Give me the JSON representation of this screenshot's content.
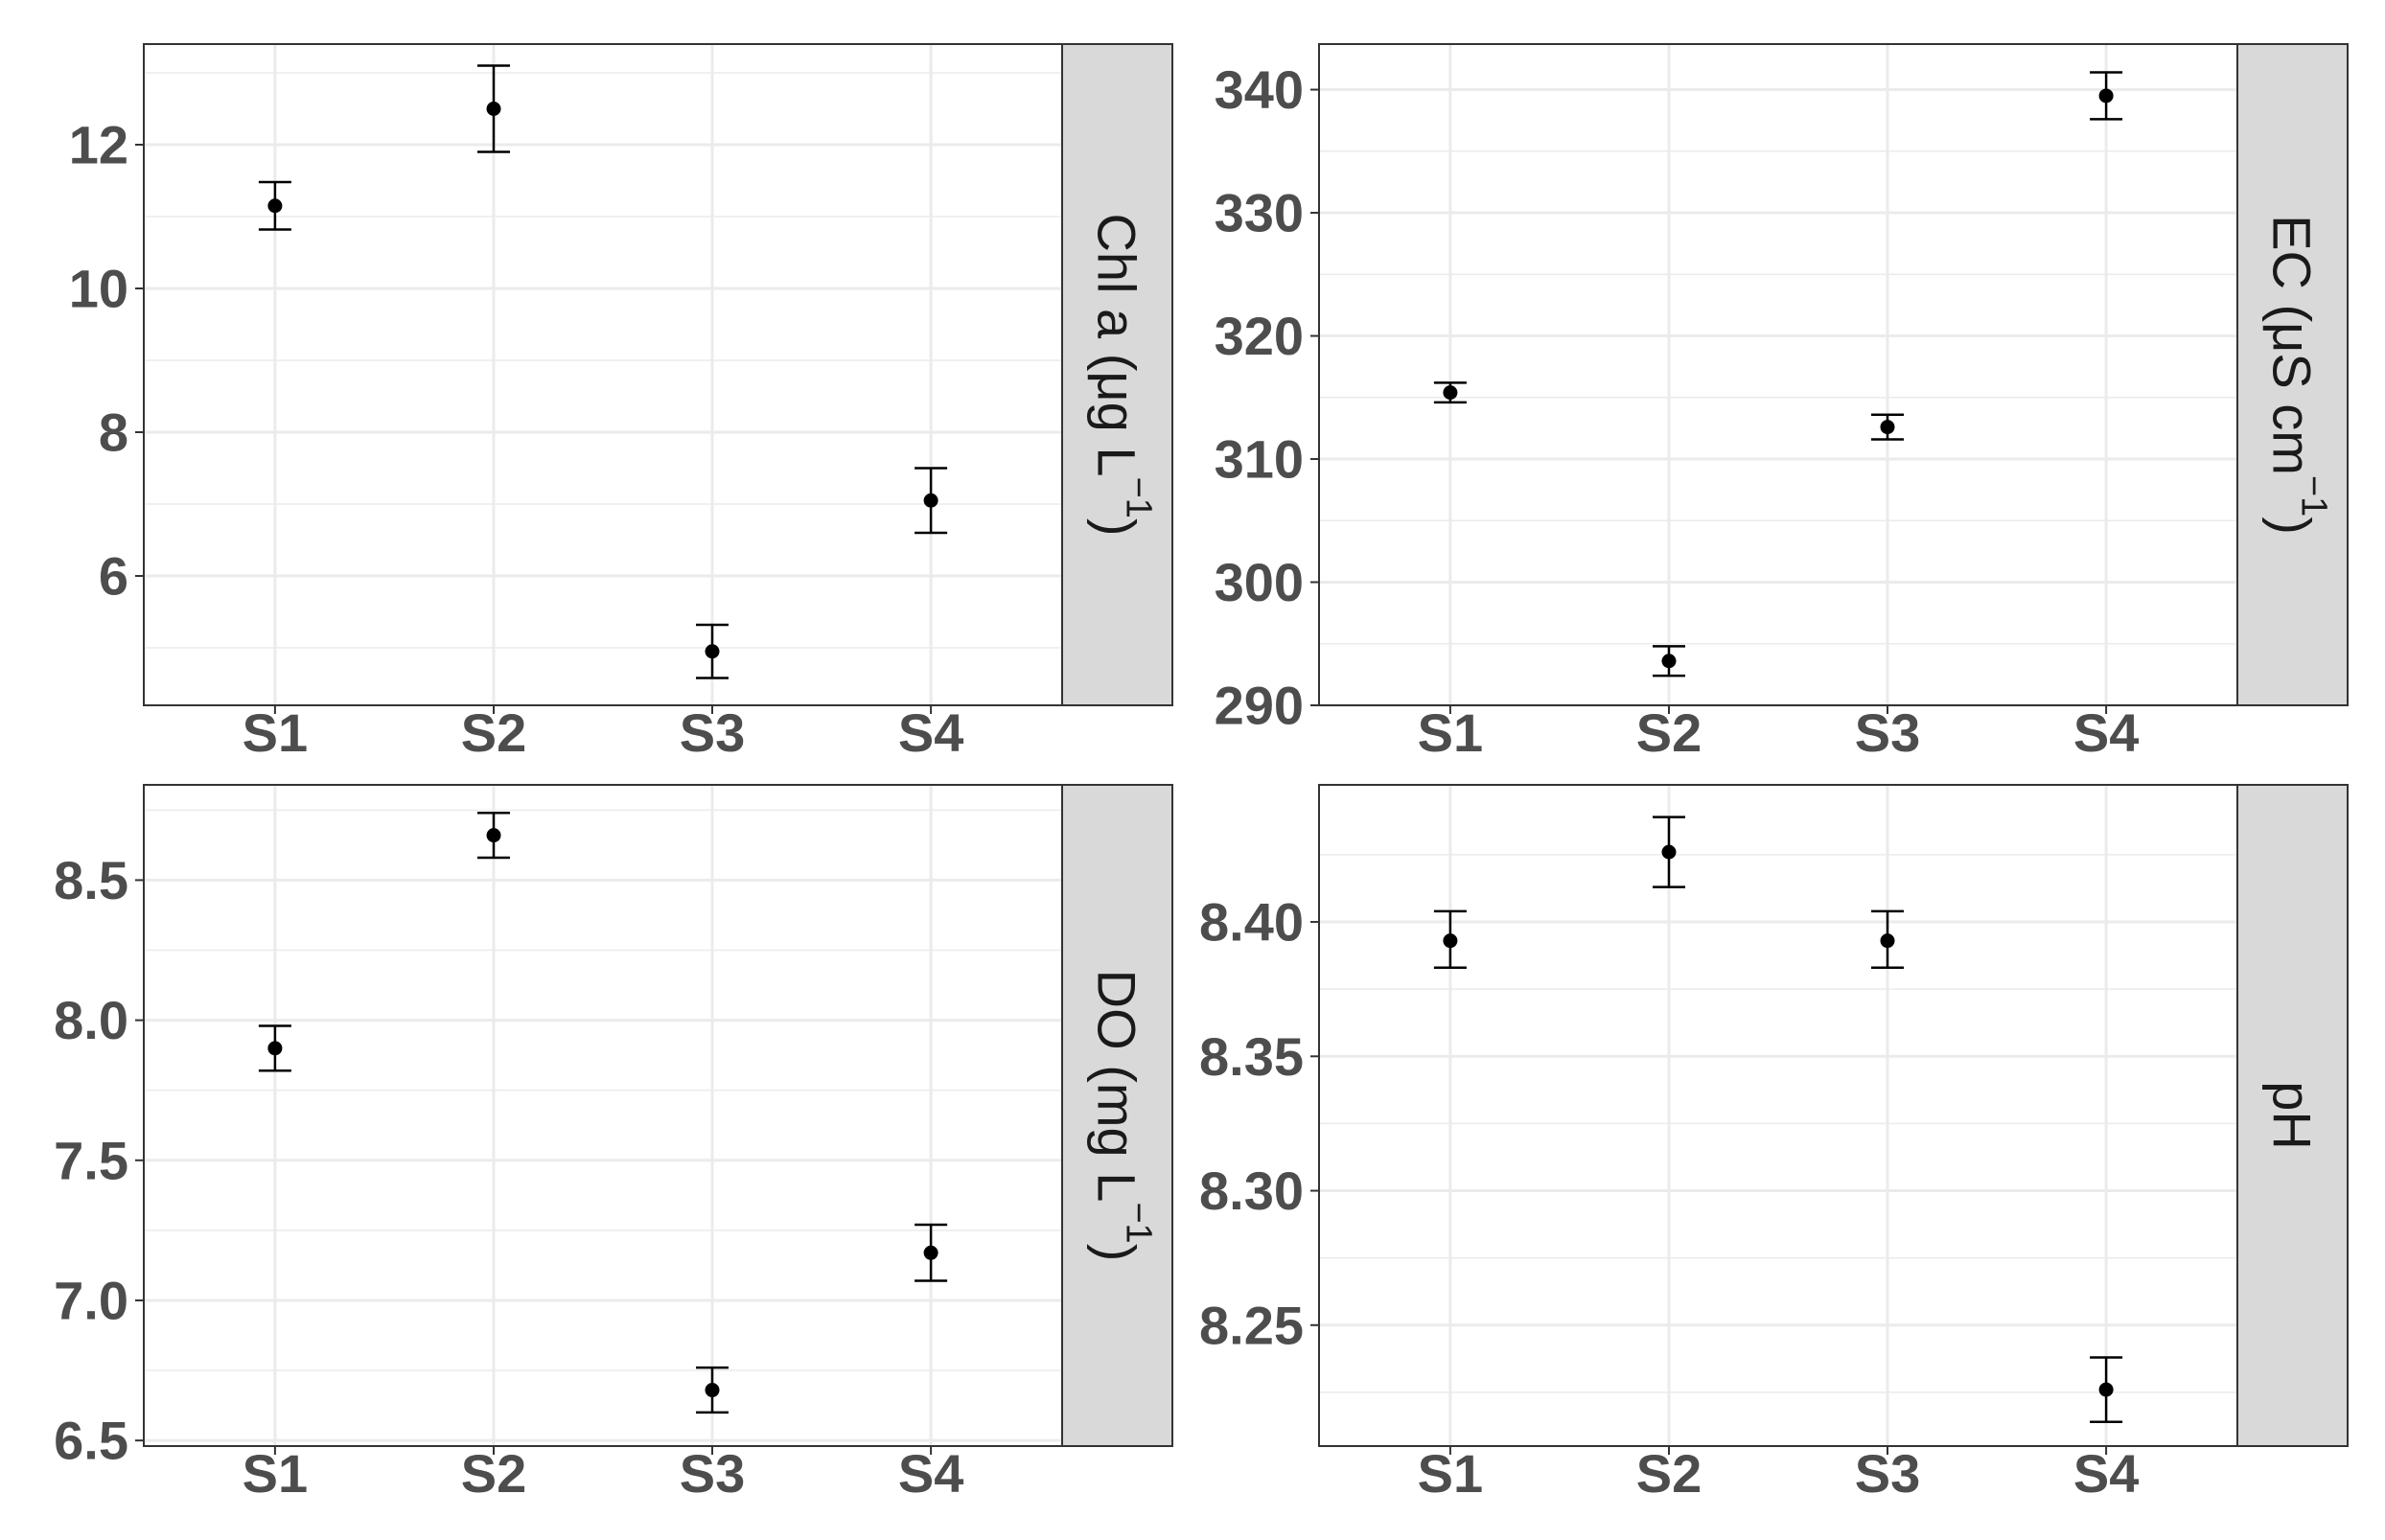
{
  "chart_data": [
    {
      "type": "scatter",
      "strip_label": {
        "main": "Chl a (μg L",
        "sup": "−1",
        "tail": ")"
      },
      "categories": [
        "S1",
        "S2",
        "S3",
        "S4"
      ],
      "values": [
        11.15,
        12.5,
        4.95,
        7.05
      ],
      "error_low": [
        10.82,
        11.9,
        4.58,
        6.6
      ],
      "error_high": [
        11.48,
        13.1,
        5.32,
        7.5
      ],
      "ylim": [
        4.2,
        13.4
      ],
      "yticks": [
        6,
        8,
        10,
        12
      ],
      "ytick_labels": [
        "6",
        "8",
        "10",
        "12"
      ],
      "grid": true
    },
    {
      "type": "scatter",
      "strip_label": {
        "main": "EC (μS cm",
        "sup": "−1",
        "tail": ")"
      },
      "categories": [
        "S1",
        "S2",
        "S3",
        "S4"
      ],
      "values": [
        315.4,
        293.6,
        312.6,
        339.5
      ],
      "error_low": [
        314.6,
        292.4,
        311.6,
        337.6
      ],
      "error_high": [
        316.2,
        294.8,
        313.6,
        341.4
      ],
      "ylim": [
        290,
        343.7
      ],
      "yticks": [
        290,
        300,
        310,
        320,
        330,
        340
      ],
      "ytick_labels": [
        "290",
        "300",
        "310",
        "320",
        "330",
        "340"
      ],
      "grid": true
    },
    {
      "type": "scatter",
      "strip_label": {
        "main": "DO (mg L",
        "sup": "−1",
        "tail": ")"
      },
      "categories": [
        "S1",
        "S2",
        "S3",
        "S4"
      ],
      "values": [
        7.9,
        8.66,
        6.68,
        7.17
      ],
      "error_low": [
        7.82,
        8.58,
        6.6,
        7.07
      ],
      "error_high": [
        7.98,
        8.74,
        6.76,
        7.27
      ],
      "ylim": [
        6.48,
        8.84
      ],
      "yticks": [
        6.5,
        7.0,
        7.5,
        8.0,
        8.5
      ],
      "ytick_labels": [
        "6.5",
        "7.0",
        "7.5",
        "8.0",
        "8.5"
      ],
      "grid": true
    },
    {
      "type": "scatter",
      "strip_label": {
        "main": "pH",
        "sup": "",
        "tail": ""
      },
      "categories": [
        "S1",
        "S2",
        "S3",
        "S4"
      ],
      "values": [
        8.393,
        8.426,
        8.393,
        8.226
      ],
      "error_low": [
        8.383,
        8.413,
        8.383,
        8.214
      ],
      "error_high": [
        8.404,
        8.439,
        8.404,
        8.238
      ],
      "ylim": [
        8.205,
        8.451
      ],
      "yticks": [
        8.25,
        8.3,
        8.35,
        8.4
      ],
      "ytick_labels": [
        "8.25",
        "8.30",
        "8.35",
        "8.40"
      ],
      "grid": true
    }
  ],
  "colors": {
    "point": "#000000",
    "grid": "#ebebeb",
    "panel_border": "#333333",
    "strip_fill": "#d9d9d9",
    "tick_text": "#4d4d4d",
    "strip_text": "#1a1a1a"
  }
}
